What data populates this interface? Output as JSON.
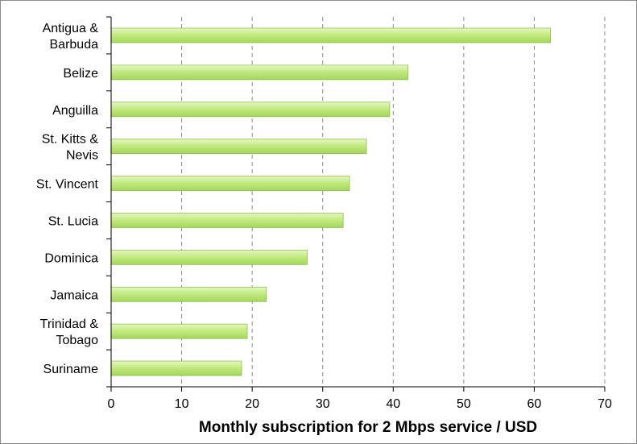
{
  "chart_data": {
    "type": "bar",
    "orientation": "horizontal",
    "categories": [
      [
        "Antigua &",
        "Barbuda"
      ],
      [
        "Belize"
      ],
      [
        "Anguilla"
      ],
      [
        "St. Kitts &",
        "Nevis"
      ],
      [
        "St. Vincent"
      ],
      [
        "St. Lucia"
      ],
      [
        "Dominica"
      ],
      [
        "Jamaica"
      ],
      [
        "Trinidad &",
        "Tobago"
      ],
      [
        "Suriname"
      ]
    ],
    "values": [
      62.3,
      42.1,
      39.5,
      36.2,
      33.8,
      32.9,
      27.8,
      22.0,
      19.3,
      18.5
    ],
    "xlabel": "Monthly subscription for 2 Mbps service / USD",
    "xlim": [
      0,
      70
    ],
    "xticks": [
      0,
      10,
      20,
      30,
      40,
      50,
      60,
      70
    ],
    "grid": "vertical-dashed",
    "legend": "none",
    "bar_color": "#bfe87f",
    "bar_edge_color": "#8fc24a"
  }
}
